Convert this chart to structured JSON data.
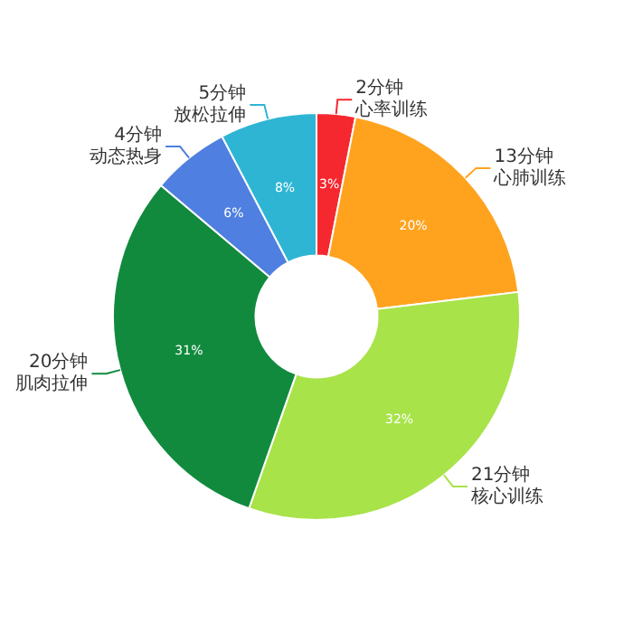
{
  "chart_data": {
    "type": "donut",
    "categories": [
      "心率训练",
      "心肺训练",
      "核心训练",
      "肌肉拉伸",
      "动态热身",
      "放松拉伸"
    ],
    "values": [
      2,
      13,
      21,
      20,
      4,
      5
    ],
    "value_labels": [
      "2分钟",
      "13分钟",
      "21分钟",
      "20分钟",
      "4分钟",
      "5分钟"
    ],
    "colors": [
      "#f5282f",
      "#ffa31f",
      "#a8e34a",
      "#118a3e",
      "#4f7fe0",
      "#2fb5d4"
    ],
    "annotations": [
      {
        "text": "3%",
        "x": "心率训练"
      },
      {
        "text": "20%",
        "x": "心肺训练"
      },
      {
        "text": "32%",
        "x": "核心训练"
      },
      {
        "text": "31%",
        "x": "肌肉拉伸"
      },
      {
        "text": "6%",
        "x": "动态热身"
      },
      {
        "text": "8%",
        "x": "放松拉伸"
      }
    ],
    "legend": false
  }
}
